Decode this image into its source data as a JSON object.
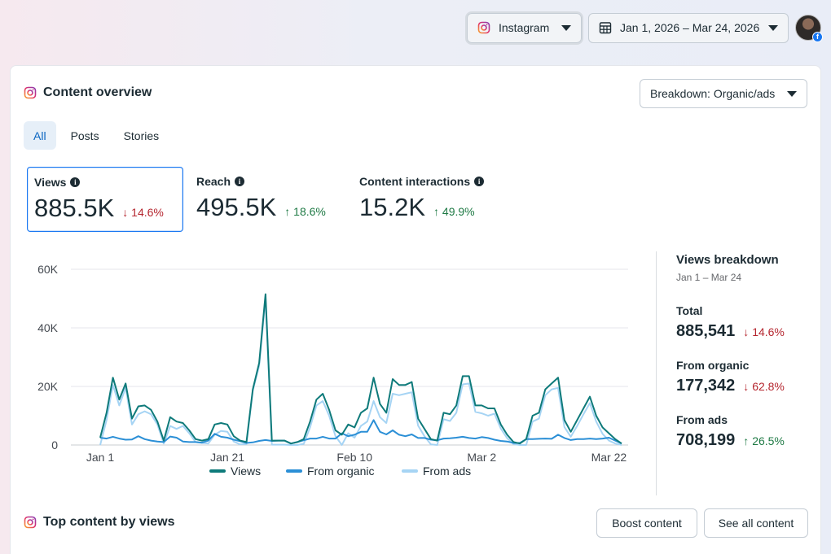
{
  "topbar": {
    "platform_label": "Instagram",
    "date_range": "Jan 1, 2026 – Mar 24, 2026"
  },
  "overview": {
    "title": "Content overview",
    "breakdown_button": "Breakdown: Organic/ads",
    "tabs": [
      "All",
      "Posts",
      "Stories"
    ],
    "active_tab": "All"
  },
  "metrics": [
    {
      "label": "Views",
      "value": "885.5K",
      "change": "14.6%",
      "direction": "down"
    },
    {
      "label": "Reach",
      "value": "495.5K",
      "change": "18.6%",
      "direction": "up"
    },
    {
      "label": "Content interactions",
      "value": "15.2K",
      "change": "49.9%",
      "direction": "up"
    }
  ],
  "chart_data": {
    "type": "line",
    "title": "",
    "xlabel": "",
    "ylabel": "",
    "ylim": [
      0,
      60000
    ],
    "y_ticks": [
      "60K",
      "40K",
      "20K",
      "0"
    ],
    "y_tick_values": [
      60000,
      40000,
      20000,
      0
    ],
    "x_tick_labels": [
      "Jan 1",
      "Jan 21",
      "Feb 10",
      "Mar 2",
      "Mar 22"
    ],
    "x_tick_days": [
      0,
      20,
      40,
      60,
      80
    ],
    "x_days_range": [
      0,
      82
    ],
    "series": [
      {
        "name": "Views",
        "color": "#0e7a7a",
        "values": [
          2500,
          11000,
          23000,
          15500,
          21000,
          9000,
          13200,
          13500,
          12000,
          8000,
          1500,
          9500,
          8000,
          7500,
          5000,
          2000,
          1500,
          2000,
          7000,
          7500,
          7000,
          3000,
          1500,
          1000,
          19000,
          28000,
          51500,
          1500,
          1500,
          1500,
          500,
          1000,
          2000,
          8000,
          15500,
          17500,
          12000,
          5000,
          3500,
          7000,
          6000,
          11000,
          12500,
          23000,
          14000,
          11000,
          22500,
          20500,
          20500,
          21500,
          9000,
          5500,
          2000,
          1500,
          11000,
          10500,
          13500,
          23500,
          23500,
          13500,
          13500,
          12500,
          12500,
          7000,
          3500,
          1000,
          500,
          2000,
          10000,
          11000,
          19000,
          21000,
          23000,
          8500,
          4500,
          8500,
          12500,
          16500,
          10000,
          6000,
          4000,
          2000,
          500
        ]
      },
      {
        "name": "From organic",
        "color": "#2b8fd6",
        "values": [
          2500,
          2200,
          2800,
          2200,
          1800,
          1900,
          3000,
          2000,
          1500,
          1200,
          1000,
          2900,
          2500,
          1200,
          1000,
          1000,
          800,
          1500,
          3800,
          2800,
          2500,
          1800,
          1300,
          700,
          900,
          1400,
          1700,
          1400,
          1500,
          1500,
          500,
          1000,
          1600,
          2200,
          2200,
          2800,
          2200,
          2200,
          4000,
          3000,
          3500,
          4500,
          4500,
          8500,
          4500,
          3600,
          5000,
          3500,
          3000,
          3600,
          2400,
          2400,
          1800,
          1600,
          2200,
          2300,
          2500,
          2800,
          2400,
          2200,
          2700,
          2400,
          1800,
          1400,
          1200,
          700,
          700,
          2000,
          2000,
          2100,
          2200,
          2100,
          3500,
          2400,
          1700,
          2000,
          2000,
          2200,
          2000,
          2200,
          2500,
          1500,
          500
        ]
      },
      {
        "name": "From ads",
        "color": "#a6d4f4",
        "values": [
          0,
          8500,
          20500,
          13500,
          19500,
          7000,
          10500,
          11500,
          10500,
          7000,
          500,
          6500,
          5500,
          6500,
          4000,
          1000,
          700,
          500,
          3500,
          4800,
          4500,
          1200,
          200,
          300,
          18500,
          27000,
          50000,
          100,
          100,
          100,
          0,
          0,
          400,
          6000,
          13500,
          15000,
          10000,
          3000,
          0,
          4000,
          2500,
          6500,
          8000,
          15000,
          9500,
          7500,
          17500,
          17000,
          17500,
          18000,
          6600,
          3000,
          200,
          0,
          8800,
          8200,
          11000,
          20700,
          21000,
          11300,
          10800,
          10000,
          10700,
          5600,
          2300,
          300,
          0,
          0,
          8000,
          9000,
          17000,
          19000,
          19500,
          6100,
          2800,
          6500,
          10500,
          14300,
          8000,
          3800,
          1500,
          500,
          0
        ]
      }
    ],
    "legend": [
      "Views",
      "From organic",
      "From ads"
    ],
    "grid": true,
    "legend_position": "bottom"
  },
  "views_breakdown": {
    "title": "Views breakdown",
    "subtitle": "Jan 1 – Mar 24",
    "items": [
      {
        "label": "Total",
        "value": "885,541",
        "change": "14.6%",
        "direction": "down"
      },
      {
        "label": "From organic",
        "value": "177,342",
        "change": "62.8%",
        "direction": "down"
      },
      {
        "label": "From ads",
        "value": "708,199",
        "change": "26.5%",
        "direction": "up"
      }
    ]
  },
  "top_content": {
    "title": "Top content by views",
    "boost_button": "Boost content",
    "see_all_button": "See all content"
  },
  "colors": {
    "accent_blue": "#1877f2",
    "down_red": "#b5262f",
    "up_green": "#1f7a45"
  }
}
